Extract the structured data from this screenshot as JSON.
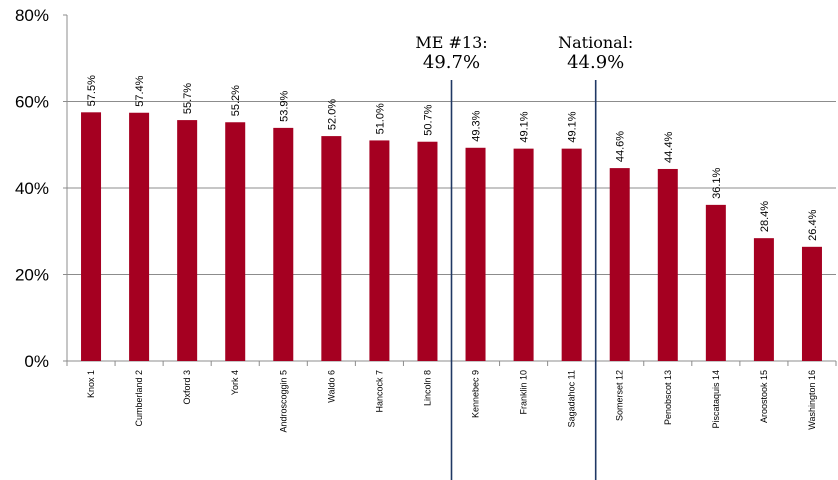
{
  "chart_data": {
    "type": "bar",
    "title": "",
    "xlabel": "",
    "ylabel": "",
    "ylim": [
      0,
      80
    ],
    "yticks": [
      "0%",
      "20%",
      "40%",
      "60%",
      "80%"
    ],
    "grid": true,
    "categories": [
      "Knox  1",
      "Cumberland  2",
      "Oxford  3",
      "York  4",
      "Androscoggin  5",
      "Waldo  6",
      "Hancock  7",
      "Lincoln  8",
      "Kennebec  9",
      "Franklin 10",
      "Sagadahoc 11",
      "Somerset 12",
      "Penobscot 13",
      "Piscataquis 14",
      "Aroostook 15",
      "Washington 16"
    ],
    "values": [
      57.5,
      57.4,
      55.7,
      55.2,
      53.9,
      52.0,
      51.0,
      50.7,
      49.3,
      49.1,
      49.1,
      44.6,
      44.4,
      36.1,
      28.4,
      26.4
    ],
    "value_labels": [
      "57.5%",
      "57.4%",
      "55.7%",
      "55.2%",
      "53.9%",
      "52.0%",
      "51.0%",
      "50.7%",
      "49.3%",
      "49.1%",
      "49.1%",
      "44.6%",
      "44.4%",
      "36.1%",
      "28.4%",
      "26.4%"
    ],
    "bar_color": "#a50021",
    "reference_line_color": "#1f3864",
    "reference_lines": [
      {
        "name": "ME #13:",
        "value_label": "49.7%",
        "between": [
          "Lincoln  8",
          "Kennebec  9"
        ]
      },
      {
        "name": "National:",
        "value_label": "44.9%",
        "between": [
          "Sagadahoc 11",
          "Somerset 12"
        ]
      }
    ]
  }
}
